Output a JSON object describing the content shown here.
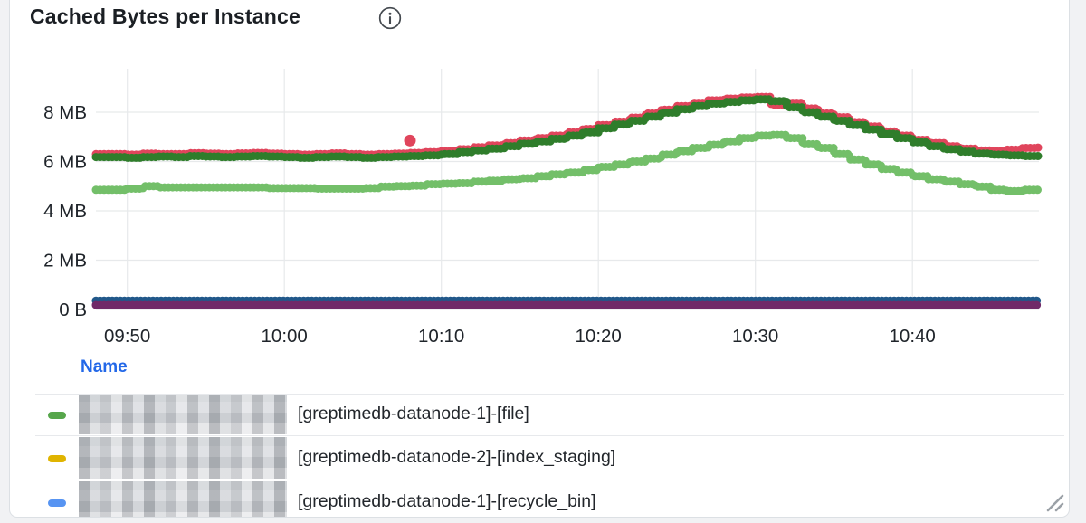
{
  "panel": {
    "title": "Cached Bytes per Instance"
  },
  "chart_data": {
    "type": "line",
    "title": "Cached Bytes per Instance",
    "style": "thick dotted step lines (scatter-dense)",
    "grid": true,
    "x_axis": {
      "start_label": "09:48",
      "interval_minutes": 1,
      "tick_labels": [
        "09:50",
        "10:00",
        "10:10",
        "10:20",
        "10:30",
        "10:40"
      ],
      "tick_minutes": [
        2,
        12,
        22,
        32,
        42,
        52
      ],
      "xlim_minutes": [
        0,
        60
      ]
    },
    "y_axis": {
      "tick_labels": [
        "0 B",
        "2 MB",
        "4 MB",
        "6 MB",
        "8 MB"
      ],
      "tick_values": [
        0,
        2,
        4,
        6,
        8
      ],
      "unit": "MB",
      "ylim": [
        0,
        10.3
      ]
    },
    "series": [
      {
        "name": "red",
        "color": "#e0455c",
        "values": [
          6.3,
          6.3,
          6.28,
          6.32,
          6.3,
          6.3,
          6.34,
          6.32,
          6.3,
          6.33,
          6.35,
          6.32,
          6.3,
          6.28,
          6.3,
          6.33,
          6.3,
          6.28,
          6.3,
          6.32,
          6.35,
          6.38,
          6.42,
          6.5,
          6.58,
          6.65,
          6.75,
          6.85,
          6.95,
          7.05,
          7.18,
          7.32,
          7.48,
          7.62,
          7.78,
          7.95,
          8.1,
          8.25,
          8.38,
          8.48,
          8.55,
          8.6,
          8.62,
          8.3,
          8.38,
          8.15,
          7.95,
          7.8,
          7.6,
          7.42,
          7.22,
          7.05,
          6.88,
          6.75,
          6.62,
          6.52,
          6.45,
          6.42,
          6.48,
          6.55,
          6.6
        ]
      },
      {
        "name": "dark-green",
        "color": "#2f7d2b",
        "values": [
          6.18,
          6.18,
          6.15,
          6.18,
          6.2,
          6.18,
          6.22,
          6.2,
          6.18,
          6.2,
          6.22,
          6.2,
          6.18,
          6.15,
          6.18,
          6.2,
          6.18,
          6.15,
          6.18,
          6.2,
          6.22,
          6.25,
          6.3,
          6.38,
          6.45,
          6.52,
          6.62,
          6.72,
          6.82,
          6.92,
          7.05,
          7.18,
          7.35,
          7.5,
          7.65,
          7.82,
          7.98,
          8.12,
          8.25,
          8.35,
          8.42,
          8.48,
          8.52,
          8.45,
          8.2,
          8.0,
          7.82,
          7.65,
          7.48,
          7.3,
          7.12,
          6.95,
          6.78,
          6.62,
          6.5,
          6.4,
          6.32,
          6.28,
          6.25,
          6.22,
          6.2
        ]
      },
      {
        "name": "light-green",
        "color": "#73bf69",
        "values": [
          4.85,
          4.85,
          4.9,
          5.0,
          4.95,
          4.95,
          4.95,
          4.95,
          4.95,
          4.95,
          4.95,
          4.92,
          4.92,
          4.92,
          4.9,
          4.9,
          4.9,
          4.92,
          4.98,
          5.0,
          5.02,
          5.08,
          5.1,
          5.12,
          5.18,
          5.22,
          5.28,
          5.32,
          5.4,
          5.48,
          5.55,
          5.65,
          5.78,
          5.88,
          6.0,
          6.12,
          6.28,
          6.42,
          6.55,
          6.68,
          6.82,
          6.95,
          7.05,
          7.08,
          6.95,
          6.7,
          6.55,
          6.3,
          6.08,
          5.88,
          5.7,
          5.55,
          5.4,
          5.28,
          5.18,
          5.08,
          4.98,
          4.85,
          4.8,
          4.85,
          4.9
        ]
      },
      {
        "name": "dark-blue",
        "color": "#21588a",
        "constant": 0.36,
        "count": 61
      },
      {
        "name": "purple",
        "color": "#702a68",
        "constant": 0.18,
        "count": 61
      }
    ],
    "outliers": [
      {
        "series": "red",
        "minute": 20,
        "value": 6.85
      }
    ],
    "legend_position": "bottom-table"
  },
  "legend": {
    "name_header": "Name",
    "rows": [
      {
        "marker_color": "#56a64b",
        "redacted_prefix": true,
        "label": "[greptimedb-datanode-1]-[file]"
      },
      {
        "marker_color": "#e0b400",
        "redacted_prefix": true,
        "label": "[greptimedb-datanode-2]-[index_staging]"
      },
      {
        "marker_color": "#5794f2",
        "redacted_prefix": true,
        "label": "[greptimedb-datanode-1]-[recycle_bin]"
      }
    ]
  }
}
